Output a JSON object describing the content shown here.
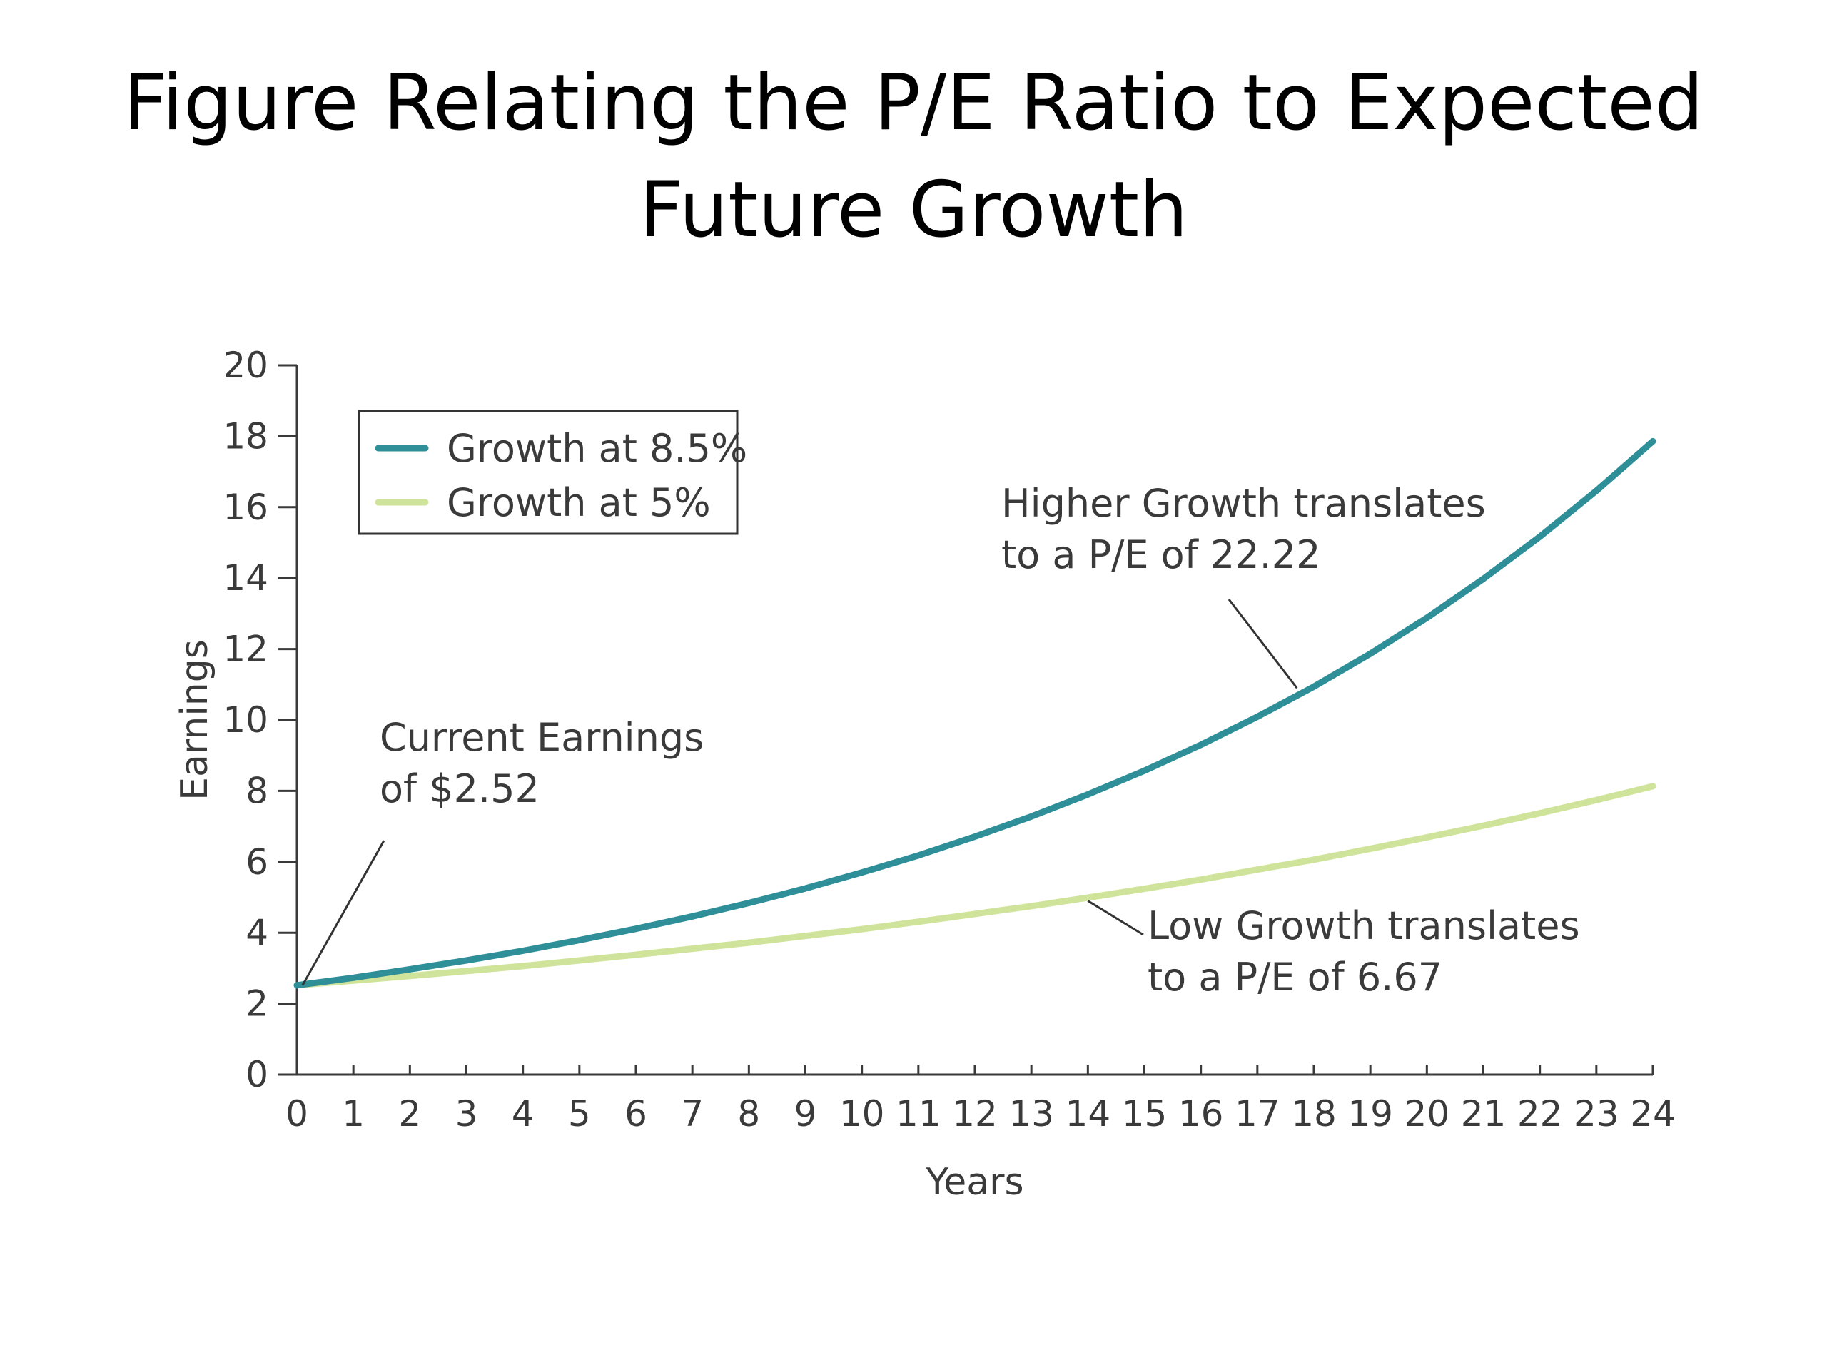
{
  "slide": {
    "title_line1": "Figure Relating the P/E Ratio to Expected",
    "title_line2": "Future Growth"
  },
  "chart_data": {
    "type": "line",
    "xlabel": "Years",
    "ylabel": "Earnings",
    "xlim": [
      0,
      24
    ],
    "ylim": [
      0,
      20
    ],
    "x_ticks": [
      0,
      1,
      2,
      3,
      4,
      5,
      6,
      7,
      8,
      9,
      10,
      11,
      12,
      13,
      14,
      15,
      16,
      17,
      18,
      19,
      20,
      21,
      22,
      23,
      24
    ],
    "y_ticks": [
      0,
      2,
      4,
      6,
      8,
      10,
      12,
      14,
      16,
      18,
      20
    ],
    "grid": false,
    "legend_position": "top-left",
    "x": [
      0,
      1,
      2,
      3,
      4,
      5,
      6,
      7,
      8,
      9,
      10,
      11,
      12,
      13,
      14,
      15,
      16,
      17,
      18,
      19,
      20,
      21,
      22,
      23,
      24
    ],
    "series": [
      {
        "name": "Growth at 8.5%",
        "color": "#2e8f98",
        "values": [
          2.52,
          2.73,
          2.97,
          3.22,
          3.49,
          3.79,
          4.11,
          4.46,
          4.84,
          5.25,
          5.7,
          6.18,
          6.71,
          7.28,
          7.9,
          8.57,
          9.3,
          10.09,
          10.94,
          11.87,
          12.88,
          13.98,
          15.17,
          16.46,
          17.86
        ]
      },
      {
        "name": "Growth at 5%",
        "color": "#cfe49a",
        "values": [
          2.52,
          2.65,
          2.78,
          2.92,
          3.06,
          3.22,
          3.38,
          3.55,
          3.72,
          3.91,
          4.1,
          4.31,
          4.53,
          4.75,
          4.99,
          5.24,
          5.5,
          5.78,
          6.06,
          6.37,
          6.69,
          7.02,
          7.37,
          7.74,
          8.13
        ]
      }
    ],
    "annotations": [
      {
        "id": "current",
        "lines": [
          "Current Earnings",
          "of $2.52"
        ],
        "x": 0.1,
        "y": 2.52
      },
      {
        "id": "high",
        "lines": [
          "Higher Growth translates",
          "to a P/E of 22.22"
        ],
        "x": 17.7,
        "y": 10.9
      },
      {
        "id": "low",
        "lines": [
          "Low Growth translates",
          "to a P/E of 6.67"
        ],
        "x": 14.0,
        "y": 4.9
      }
    ]
  }
}
